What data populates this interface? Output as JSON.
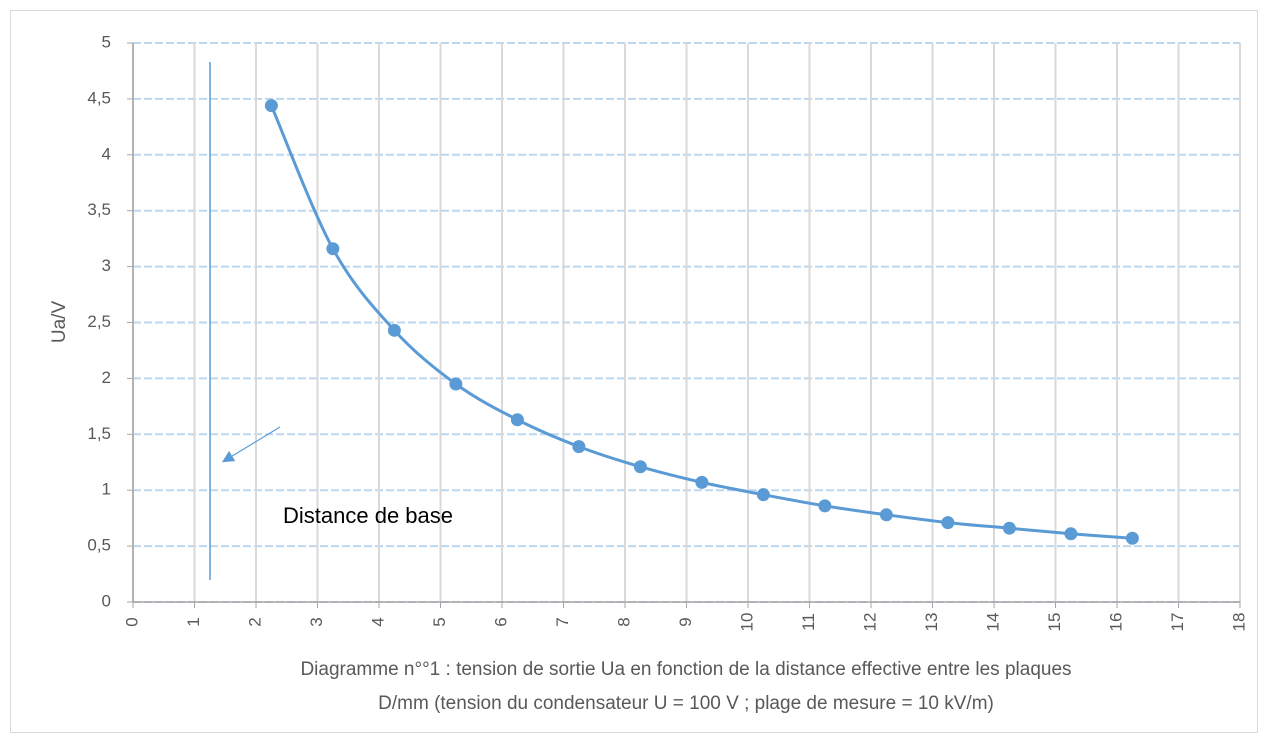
{
  "chart_data": {
    "type": "scatter",
    "x_label": "Diagramme n°°1 : tension de sortie Ua en fonction de la distance effective entre les plaques",
    "x_label_2": "D/mm (tension du condensateur U = 100 V ; plage de mesure = 10 kV/m)",
    "y_label": "Ua/V",
    "annotation": "Distance de base",
    "series": [
      {
        "name": "Ua",
        "color": "#5b9bd5",
        "x": [
          2.25,
          3.25,
          4.25,
          5.25,
          6.25,
          7.25,
          8.25,
          9.25,
          10.25,
          11.25,
          12.25,
          13.25,
          14.25,
          15.25,
          16.25
        ],
        "values": [
          4.44,
          3.16,
          2.43,
          1.95,
          1.63,
          1.39,
          1.21,
          1.07,
          0.96,
          0.86,
          0.78,
          0.71,
          0.66,
          0.61,
          0.57
        ]
      }
    ],
    "xlim": [
      0,
      18
    ],
    "xticks": [
      0,
      1,
      2,
      3,
      4,
      5,
      6,
      7,
      8,
      9,
      10,
      11,
      12,
      13,
      14,
      15,
      16,
      17,
      18
    ],
    "ylim": [
      0,
      5
    ],
    "yticks": [
      0,
      {
        "value": 0.5,
        "label": "0,5"
      },
      1,
      {
        "value": 1.5,
        "label": "1,5"
      },
      2,
      {
        "value": 2.5,
        "label": "2,5"
      },
      3,
      {
        "value": 3.5,
        "label": "3,5"
      },
      4,
      {
        "value": 4.5,
        "label": "4,5"
      },
      5
    ],
    "grid": true,
    "smooth": true
  }
}
